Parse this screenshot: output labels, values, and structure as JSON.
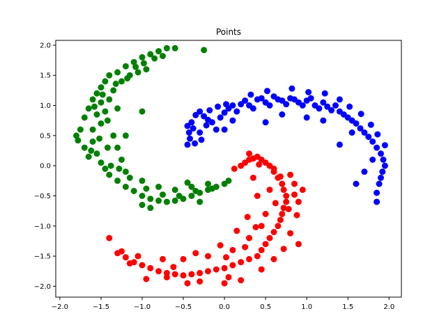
{
  "chart_data": {
    "type": "scatter",
    "title": "Points",
    "xlabel": "",
    "ylabel": "",
    "xlim": [
      -2.05,
      2.15
    ],
    "ylim": [
      -2.18,
      2.08
    ],
    "xticks": [
      -2.0,
      -1.5,
      -1.0,
      -0.5,
      0.0,
      0.5,
      1.0,
      1.5,
      2.0
    ],
    "yticks": [
      -2.0,
      -1.5,
      -1.0,
      -0.5,
      0.0,
      0.5,
      1.0,
      1.5,
      2.0
    ],
    "xtick_labels": [
      "−2.0",
      "−1.5",
      "−1.0",
      "−0.5",
      "0.0",
      "0.5",
      "1.0",
      "1.5",
      "2.0"
    ],
    "ytick_labels": [
      "−2.0",
      "−1.5",
      "−1.0",
      "−0.5",
      "0.0",
      "0.5",
      "1.0",
      "1.5",
      "2.0"
    ],
    "grid": false,
    "legend": "none",
    "series": [
      {
        "color": "#0000ff",
        "points": [
          [
            -0.45,
            0.35
          ],
          [
            -0.43,
            0.55
          ],
          [
            -0.4,
            0.72
          ],
          [
            -0.35,
            0.84
          ],
          [
            -0.3,
            0.9
          ],
          [
            -0.25,
            0.82
          ],
          [
            -0.2,
            0.76
          ],
          [
            -0.15,
            0.72
          ],
          [
            -0.1,
            0.6
          ],
          [
            -0.05,
            0.8
          ],
          [
            0.0,
            0.88
          ],
          [
            0.05,
            0.95
          ],
          [
            0.1,
            1.0
          ],
          [
            0.15,
            0.9
          ],
          [
            0.2,
            1.02
          ],
          [
            0.25,
            1.08
          ],
          [
            0.3,
            1.0
          ],
          [
            0.35,
            0.95
          ],
          [
            0.4,
            1.1
          ],
          [
            0.45,
            1.12
          ],
          [
            0.5,
            1.05
          ],
          [
            0.55,
            1.0
          ],
          [
            0.6,
            1.15
          ],
          [
            0.65,
            1.1
          ],
          [
            0.7,
            1.08
          ],
          [
            0.75,
            1.02
          ],
          [
            0.8,
            1.12
          ],
          [
            0.85,
            1.1
          ],
          [
            0.9,
            1.05
          ],
          [
            0.95,
            1.0
          ],
          [
            1.0,
            1.08
          ],
          [
            1.05,
            1.12
          ],
          [
            1.1,
            1.0
          ],
          [
            1.15,
            0.95
          ],
          [
            1.2,
            1.05
          ],
          [
            1.25,
            0.98
          ],
          [
            1.3,
            0.92
          ],
          [
            1.35,
            1.0
          ],
          [
            1.4,
            0.9
          ],
          [
            1.45,
            0.85
          ],
          [
            1.5,
            0.8
          ],
          [
            1.55,
            0.75
          ],
          [
            1.6,
            0.7
          ],
          [
            1.65,
            0.62
          ],
          [
            1.7,
            0.55
          ],
          [
            1.75,
            0.48
          ],
          [
            1.8,
            0.4
          ],
          [
            1.85,
            0.3
          ],
          [
            1.9,
            0.2
          ],
          [
            1.93,
            0.1
          ],
          [
            1.95,
            0.0
          ],
          [
            1.92,
            -0.1
          ],
          [
            1.9,
            -0.2
          ],
          [
            1.88,
            -0.3
          ],
          [
            1.85,
            -0.45
          ],
          [
            1.85,
            -0.6
          ],
          [
            1.6,
            -0.3
          ],
          [
            1.7,
            -0.1
          ],
          [
            1.4,
            0.35
          ],
          [
            -0.3,
            0.55
          ],
          [
            0.0,
            0.6
          ],
          [
            0.5,
            0.72
          ],
          [
            1.0,
            0.8
          ],
          [
            1.2,
            0.75
          ],
          [
            -0.42,
            0.45
          ],
          [
            -0.38,
            0.62
          ],
          [
            0.1,
            0.75
          ],
          [
            0.7,
            0.85
          ],
          [
            1.55,
            0.55
          ],
          [
            1.8,
            0.1
          ],
          [
            -0.45,
            0.66
          ],
          [
            -0.28,
            0.43
          ],
          [
            -0.18,
            0.92
          ],
          [
            -0.08,
            0.98
          ],
          [
            0.02,
            1.02
          ],
          [
            0.32,
            1.18
          ],
          [
            0.52,
            1.24
          ],
          [
            0.82,
            1.28
          ],
          [
            1.02,
            1.22
          ],
          [
            1.22,
            1.2
          ],
          [
            1.4,
            1.1
          ],
          [
            1.52,
            0.98
          ],
          [
            1.66,
            0.86
          ],
          [
            1.78,
            0.68
          ],
          [
            1.86,
            0.52
          ],
          [
            1.95,
            0.34
          ],
          [
            -0.36,
            0.37
          ],
          [
            -0.22,
            0.67
          ]
        ]
      },
      {
        "color": "#ff0000",
        "points": [
          [
            0.2,
            0.0
          ],
          [
            0.25,
            0.05
          ],
          [
            0.3,
            0.1
          ],
          [
            0.35,
            0.12
          ],
          [
            0.4,
            0.15
          ],
          [
            0.45,
            0.1
          ],
          [
            0.5,
            0.05
          ],
          [
            0.55,
            0.0
          ],
          [
            0.6,
            -0.1
          ],
          [
            0.65,
            -0.2
          ],
          [
            0.7,
            -0.3
          ],
          [
            0.72,
            -0.4
          ],
          [
            0.75,
            -0.5
          ],
          [
            0.75,
            -0.6
          ],
          [
            0.72,
            -0.7
          ],
          [
            0.7,
            -0.8
          ],
          [
            0.68,
            -0.9
          ],
          [
            0.65,
            -1.0
          ],
          [
            0.6,
            -1.1
          ],
          [
            0.55,
            -1.2
          ],
          [
            0.5,
            -1.3
          ],
          [
            0.45,
            -1.4
          ],
          [
            0.4,
            -1.5
          ],
          [
            0.3,
            -1.55
          ],
          [
            0.2,
            -1.6
          ],
          [
            0.1,
            -1.65
          ],
          [
            0.0,
            -1.7
          ],
          [
            -0.1,
            -1.72
          ],
          [
            -0.2,
            -1.75
          ],
          [
            -0.3,
            -1.78
          ],
          [
            -0.4,
            -1.8
          ],
          [
            -0.5,
            -1.82
          ],
          [
            -0.6,
            -1.8
          ],
          [
            -0.7,
            -1.78
          ],
          [
            -0.8,
            -1.75
          ],
          [
            -0.9,
            -1.7
          ],
          [
            -1.0,
            -1.65
          ],
          [
            -1.1,
            -1.6
          ],
          [
            -1.2,
            -1.52
          ],
          [
            -1.3,
            -1.45
          ],
          [
            -1.4,
            -1.2
          ],
          [
            0.35,
            -0.2
          ],
          [
            0.4,
            -0.5
          ],
          [
            0.5,
            -0.8
          ],
          [
            0.45,
            -1.0
          ],
          [
            0.3,
            -1.2
          ],
          [
            0.1,
            -1.4
          ],
          [
            -0.2,
            -1.5
          ],
          [
            -0.5,
            -1.55
          ],
          [
            0.9,
            -0.6
          ],
          [
            0.85,
            -0.3
          ],
          [
            0.9,
            -1.3
          ],
          [
            0.6,
            -1.55
          ],
          [
            0.2,
            -1.9
          ],
          [
            0.0,
            -1.95
          ],
          [
            -0.3,
            -1.92
          ],
          [
            -0.7,
            -1.85
          ],
          [
            0.3,
            0.2
          ],
          [
            0.6,
            -0.05
          ],
          [
            0.8,
            -0.15
          ],
          [
            0.55,
            -0.4
          ],
          [
            0.62,
            -0.62
          ],
          [
            0.28,
            -0.85
          ],
          [
            0.15,
            -1.08
          ],
          [
            -0.05,
            -1.32
          ],
          [
            -0.35,
            -1.45
          ],
          [
            -0.75,
            -1.55
          ],
          [
            -1.05,
            -1.5
          ],
          [
            -1.25,
            -1.42
          ],
          [
            0.85,
            -0.48
          ],
          [
            0.88,
            -0.82
          ],
          [
            0.8,
            -1.12
          ],
          [
            0.72,
            -1.38
          ],
          [
            0.45,
            -1.72
          ],
          [
            0.05,
            -1.85
          ],
          [
            -0.45,
            -1.95
          ],
          [
            -0.95,
            -1.88
          ],
          [
            0.12,
            -0.05
          ],
          [
            0.42,
            0.02
          ],
          [
            0.68,
            -0.18
          ],
          [
            0.78,
            -0.72
          ],
          [
            0.38,
            -1.02
          ],
          [
            0.02,
            -1.52
          ],
          [
            -0.62,
            -1.68
          ],
          [
            -1.15,
            -1.62
          ],
          [
            0.95,
            -0.4
          ],
          [
            0.25,
            -1.35
          ]
        ]
      },
      {
        "color": "#008000",
        "points": [
          [
            -1.75,
            0.6
          ],
          [
            -1.7,
            0.8
          ],
          [
            -1.65,
            0.95
          ],
          [
            -1.6,
            1.1
          ],
          [
            -1.55,
            1.2
          ],
          [
            -1.5,
            1.3
          ],
          [
            -1.45,
            1.4
          ],
          [
            -1.4,
            1.5
          ],
          [
            -1.3,
            1.55
          ],
          [
            -1.2,
            1.65
          ],
          [
            -1.1,
            1.72
          ],
          [
            -1.0,
            1.8
          ],
          [
            -0.9,
            1.85
          ],
          [
            -0.8,
            1.9
          ],
          [
            -0.7,
            1.95
          ],
          [
            -0.6,
            1.95
          ],
          [
            -0.25,
            1.92
          ],
          [
            -1.8,
            0.5
          ],
          [
            -1.6,
            0.4
          ],
          [
            -1.55,
            0.2
          ],
          [
            -1.5,
            0.05
          ],
          [
            -1.45,
            -0.05
          ],
          [
            -1.4,
            -0.15
          ],
          [
            -1.3,
            -0.25
          ],
          [
            -1.2,
            -0.35
          ],
          [
            -1.1,
            -0.42
          ],
          [
            -1.0,
            -0.5
          ],
          [
            -0.9,
            -0.55
          ],
          [
            -0.8,
            -0.58
          ],
          [
            -0.7,
            -0.6
          ],
          [
            -0.6,
            -0.58
          ],
          [
            -0.5,
            -0.55
          ],
          [
            -0.4,
            -0.5
          ],
          [
            -0.3,
            -0.45
          ],
          [
            -0.2,
            -0.4
          ],
          [
            -0.1,
            -0.35
          ],
          [
            0.0,
            -0.3
          ],
          [
            0.05,
            -0.25
          ],
          [
            -1.5,
            0.7
          ],
          [
            -1.45,
            0.9
          ],
          [
            -1.4,
            1.1
          ],
          [
            -1.35,
            1.25
          ],
          [
            -1.25,
            1.4
          ],
          [
            -1.15,
            1.5
          ],
          [
            -1.05,
            1.55
          ],
          [
            -0.95,
            1.6
          ],
          [
            -1.35,
            0.5
          ],
          [
            -1.3,
            0.3
          ],
          [
            -1.25,
            0.1
          ],
          [
            -1.2,
            -0.1
          ],
          [
            -1.0,
            -0.25
          ],
          [
            -0.8,
            -0.35
          ],
          [
            -0.6,
            -0.4
          ],
          [
            -0.4,
            -0.35
          ],
          [
            -0.2,
            -0.3
          ],
          [
            -1.6,
            0.6
          ],
          [
            -1.55,
            0.85
          ],
          [
            -1.0,
            0.9
          ],
          [
            -1.2,
            0.5
          ],
          [
            -0.9,
            -0.7
          ],
          [
            -1.0,
            -0.65
          ],
          [
            -0.3,
            -0.6
          ],
          [
            -1.7,
            0.3
          ],
          [
            -1.65,
            0.15
          ],
          [
            -1.78,
            0.42
          ],
          [
            -1.58,
            0.98
          ],
          [
            -1.48,
            1.18
          ],
          [
            -1.32,
            1.36
          ],
          [
            -1.18,
            1.45
          ],
          [
            -1.08,
            1.64
          ],
          [
            -0.98,
            1.7
          ],
          [
            -0.85,
            1.78
          ],
          [
            -0.75,
            1.82
          ],
          [
            -1.42,
            0.3
          ],
          [
            -1.38,
            0.0
          ],
          [
            -1.28,
            -0.05
          ],
          [
            -1.15,
            -0.2
          ],
          [
            -0.95,
            -0.38
          ],
          [
            -0.75,
            -0.48
          ],
          [
            -0.55,
            -0.5
          ],
          [
            -0.35,
            -0.42
          ],
          [
            -0.15,
            -0.38
          ],
          [
            -1.62,
            0.25
          ],
          [
            -1.52,
            0.45
          ],
          [
            -1.42,
            0.75
          ],
          [
            -1.3,
            0.95
          ],
          [
            -1.5,
            1.05
          ],
          [
            -0.45,
            -0.28
          ]
        ]
      }
    ]
  }
}
